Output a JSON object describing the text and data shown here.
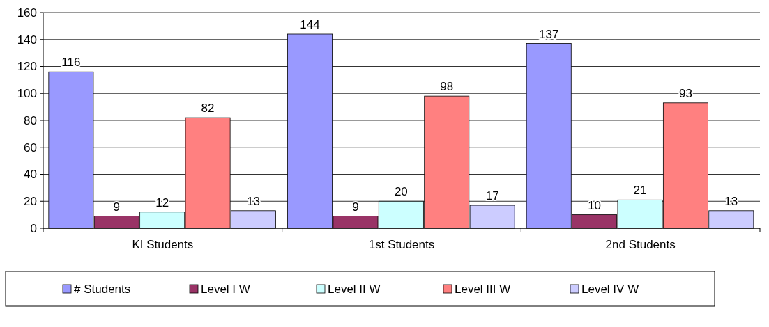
{
  "chart_data": {
    "type": "bar",
    "categories": [
      "KI Students",
      "1st Students",
      "2nd Students"
    ],
    "series": [
      {
        "name": "# Students",
        "color": "#9999ff",
        "values": [
          116,
          144,
          137
        ]
      },
      {
        "name": "Level I W",
        "color": "#993366",
        "values": [
          9,
          9,
          10
        ]
      },
      {
        "name": "Level II W",
        "color": "#ccffff",
        "values": [
          12,
          20,
          21
        ]
      },
      {
        "name": "Level III W",
        "color": "#ff8080",
        "values": [
          82,
          98,
          93
        ]
      },
      {
        "name": "Level IV W",
        "color": "#ccccff",
        "values": [
          13,
          17,
          13
        ]
      }
    ],
    "ylim": [
      0,
      160
    ],
    "yticks": [
      0,
      20,
      40,
      60,
      80,
      100,
      120,
      140,
      160
    ],
    "grid": "y",
    "legend": "bottom",
    "data_labels": true
  }
}
